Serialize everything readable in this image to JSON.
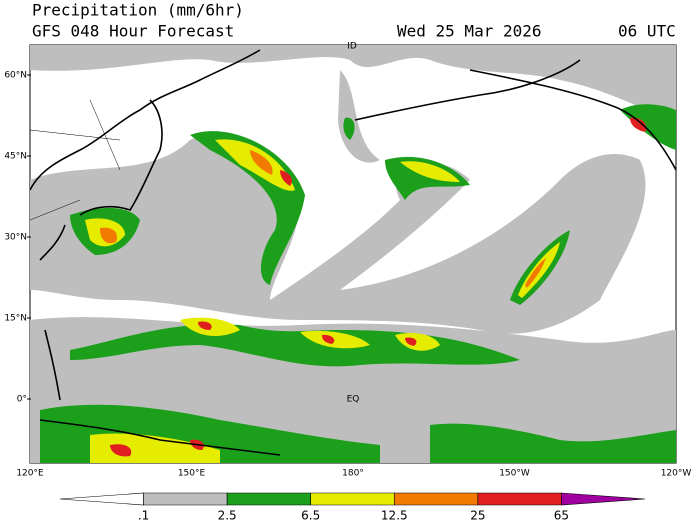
{
  "header": {
    "title": "Precipitation (mm/6hr)",
    "model": "GFS 048 Hour Forecast",
    "date": "Wed 25 Mar 2026",
    "time": "06 UTC"
  },
  "map": {
    "lat_labels": [
      "60°N",
      "45°N",
      "30°N",
      "15°N",
      "0°"
    ],
    "lon_labels": [
      "120°E",
      "150°E",
      "180°",
      "150°W",
      "120°W"
    ],
    "markers": [
      "ID",
      "EQ"
    ]
  },
  "legend": {
    "colors": [
      "#ffffff",
      "#bebebe",
      "#1ca01c",
      "#e6ec00",
      "#f27a00",
      "#e02020",
      "#a000a0"
    ],
    "labels": [
      ".1",
      "2.5",
      "6.5",
      "12.5",
      "25",
      "65"
    ]
  }
}
